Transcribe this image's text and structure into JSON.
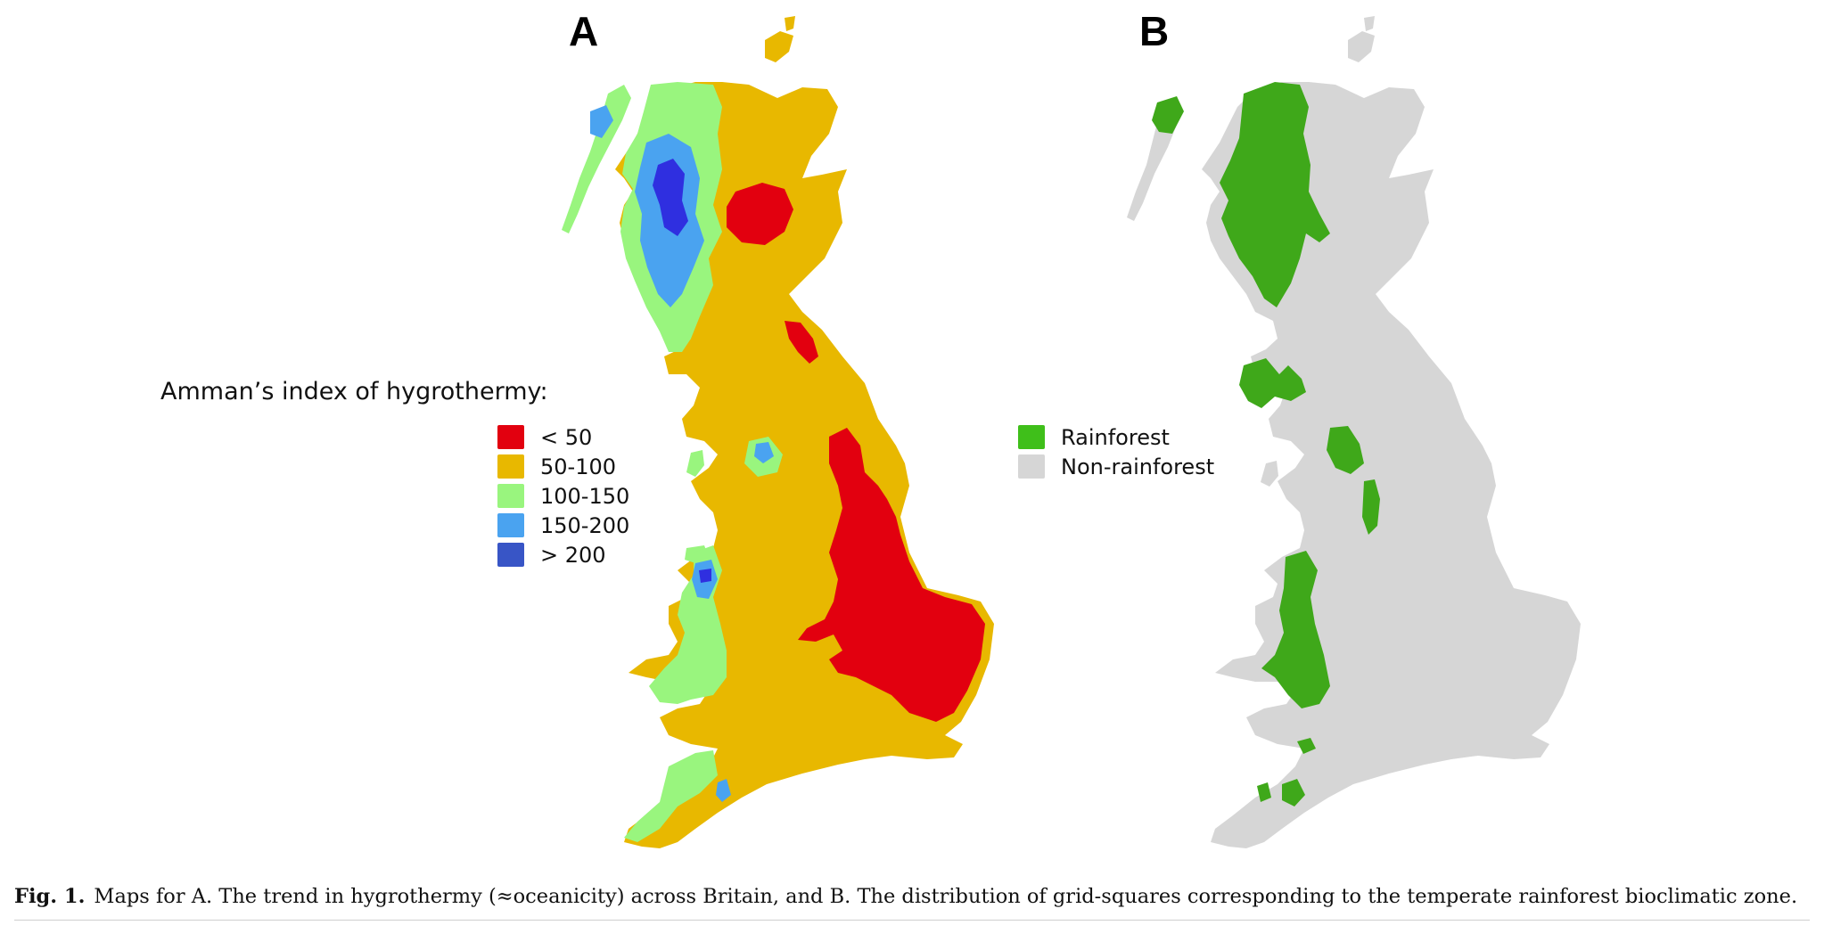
{
  "panels": {
    "a": {
      "letter": "A"
    },
    "b": {
      "letter": "B"
    }
  },
  "legend_a": {
    "title": "Amman’s index of hygrothermy:",
    "items": [
      {
        "label": "< 50",
        "color": "#e2000f"
      },
      {
        "label": "50-100",
        "color": "#e8b800"
      },
      {
        "label": "100-150",
        "color": "#99f57e"
      },
      {
        "label": "150-200",
        "color": "#4aa3f0"
      },
      {
        "label": "> 200",
        "color": "#3855c6"
      }
    ]
  },
  "legend_b": {
    "items": [
      {
        "label": "Rainforest",
        "color": "#3fbf1a"
      },
      {
        "label": "Non-rainforest",
        "color": "#d6d6d6"
      }
    ]
  },
  "map_colors": {
    "a_base": "#e8b800",
    "a_red": "#e2000f",
    "a_green": "#99f57e",
    "a_lightblue": "#4aa3f0",
    "a_darkblue": "#2f2fe0",
    "b_base": "#d6d6d6",
    "b_green": "#3fa81a"
  },
  "caption": {
    "label": "Fig. 1.",
    "text": "Maps for A. The trend in hygrothermy (≈oceanicity) across Britain, and B. The distribution of grid-squares corresponding to the temperate rainforest bioclimatic zone."
  }
}
